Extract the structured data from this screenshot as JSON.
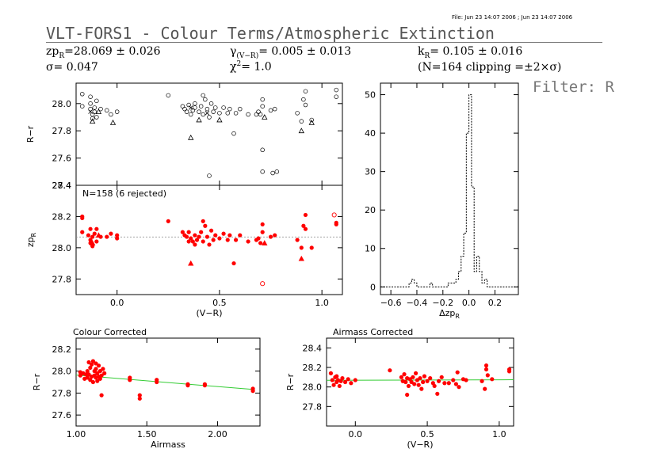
{
  "header": {
    "file_stamp": "File: Jun 23 14:07 2006 ; Jun 23 14:07 2006",
    "title": "VLT-FORS1 - Colour Terms/Atmospheric Extinction",
    "filter": "Filter: R"
  },
  "stats": {
    "zp": "zp",
    "zp_sub": "R",
    "zp_val": "=28.069 ± 0.026",
    "sigma": "σ= 0.047",
    "gamma": "γ",
    "gamma_sub": "(V−R)",
    "gamma_val": "= 0.005 ± 0.013",
    "chi": "χ",
    "chi_sup": "2",
    "chi_val": "= 1.0",
    "k": "k",
    "k_sub": "R",
    "k_val": "= 0.105 ± 0.016",
    "clip": "(N=164 clipping =±2×σ)"
  },
  "colors": {
    "accent": "#ff0000",
    "fit": "#33cc33",
    "grid": "#888888"
  },
  "chart_data": [
    {
      "id": "raw",
      "type": "scatter",
      "xlim": [
        -0.2,
        1.1
      ],
      "ylim": [
        27.4,
        28.15
      ],
      "yticks": [
        27.4,
        27.6,
        27.8,
        28.0
      ],
      "ytick_labels": [
        "27.4",
        "27.6",
        "27.8",
        "28.0"
      ],
      "ylabel": "R−r",
      "circles": [
        [
          -0.17,
          28.07
        ],
        [
          -0.17,
          27.98
        ],
        [
          -0.13,
          28.05
        ],
        [
          -0.13,
          28.0
        ],
        [
          -0.13,
          27.96
        ],
        [
          -0.12,
          27.92
        ],
        [
          -0.12,
          27.89
        ],
        [
          -0.11,
          27.94
        ],
        [
          -0.11,
          27.97
        ],
        [
          -0.1,
          27.9
        ],
        [
          -0.1,
          28.02
        ],
        [
          -0.08,
          27.96
        ],
        [
          -0.05,
          27.95
        ],
        [
          -0.03,
          27.92
        ],
        [
          0.0,
          27.94
        ],
        [
          0.25,
          28.06
        ],
        [
          0.32,
          27.98
        ],
        [
          0.33,
          27.96
        ],
        [
          0.34,
          27.94
        ],
        [
          0.35,
          27.99
        ],
        [
          0.36,
          27.92
        ],
        [
          0.37,
          27.95
        ],
        [
          0.38,
          27.97
        ],
        [
          0.38,
          28.0
        ],
        [
          0.4,
          27.94
        ],
        [
          0.41,
          27.98
        ],
        [
          0.42,
          27.92
        ],
        [
          0.42,
          28.06
        ],
        [
          0.43,
          28.03
        ],
        [
          0.44,
          27.96
        ],
        [
          0.45,
          27.9
        ],
        [
          0.46,
          28.0
        ],
        [
          0.47,
          27.94
        ],
        [
          0.48,
          27.97
        ],
        [
          0.5,
          27.93
        ],
        [
          0.52,
          27.97
        ],
        [
          0.54,
          27.93
        ],
        [
          0.55,
          27.96
        ],
        [
          0.57,
          27.78
        ],
        [
          0.58,
          27.93
        ],
        [
          0.6,
          27.96
        ],
        [
          0.64,
          27.92
        ],
        [
          0.68,
          27.92
        ],
        [
          0.69,
          27.94
        ],
        [
          0.7,
          27.92
        ],
        [
          0.71,
          28.03
        ],
        [
          0.71,
          27.98
        ],
        [
          0.71,
          27.66
        ],
        [
          0.71,
          27.5
        ],
        [
          0.75,
          27.95
        ],
        [
          0.76,
          27.49
        ],
        [
          0.77,
          27.96
        ],
        [
          0.78,
          27.5
        ],
        [
          0.88,
          27.93
        ],
        [
          0.9,
          27.87
        ],
        [
          0.91,
          28.03
        ],
        [
          0.92,
          28.09
        ],
        [
          0.92,
          27.99
        ],
        [
          0.95,
          27.88
        ],
        [
          1.07,
          28.1
        ],
        [
          1.07,
          28.05
        ],
        [
          0.45,
          27.47
        ]
      ],
      "triangles": [
        [
          -0.12,
          27.87
        ],
        [
          -0.09,
          27.94
        ],
        [
          -0.02,
          27.86
        ],
        [
          0.36,
          27.75
        ],
        [
          0.4,
          27.88
        ],
        [
          0.5,
          27.88
        ],
        [
          0.72,
          27.9
        ],
        [
          0.9,
          27.8
        ],
        [
          0.95,
          27.86
        ]
      ],
      "crosses": [
        [
          -0.13,
          27.94
        ],
        [
          0.36,
          27.97
        ],
        [
          0.44,
          27.93
        ]
      ]
    },
    {
      "id": "zp",
      "type": "scatter",
      "annotation": "N=158 (6 rejected)",
      "xlim": [
        -0.2,
        1.1
      ],
      "ylim": [
        27.7,
        28.4
      ],
      "xticks": [
        0.0,
        0.5,
        1.0
      ],
      "xtick_labels": [
        "0.0",
        "0.5",
        "1.0"
      ],
      "yticks": [
        27.8,
        28.0,
        28.2,
        28.4
      ],
      "ytick_labels": [
        "27.8",
        "28.0",
        "28.2",
        "28.4"
      ],
      "xlabel": "(V−R)",
      "ylabel": "zp",
      "ylabel_sub": "R",
      "fit_y": 28.069,
      "points": [
        [
          -0.17,
          28.2
        ],
        [
          -0.17,
          28.19
        ],
        [
          -0.17,
          28.1
        ],
        [
          -0.14,
          28.08
        ],
        [
          -0.13,
          28.12
        ],
        [
          -0.13,
          28.05
        ],
        [
          -0.13,
          28.03
        ],
        [
          -0.12,
          28.01
        ],
        [
          -0.12,
          28.07
        ],
        [
          -0.11,
          28.09
        ],
        [
          -0.1,
          28.04
        ],
        [
          -0.1,
          28.12
        ],
        [
          -0.08,
          28.07
        ],
        [
          -0.05,
          28.07
        ],
        [
          -0.03,
          28.09
        ],
        [
          0.0,
          28.08
        ],
        [
          0.0,
          28.06
        ],
        [
          0.25,
          28.17
        ],
        [
          0.32,
          28.1
        ],
        [
          0.33,
          28.08
        ],
        [
          0.34,
          28.07
        ],
        [
          0.35,
          28.1
        ],
        [
          0.35,
          28.04
        ],
        [
          0.36,
          28.06
        ],
        [
          0.37,
          28.04
        ],
        [
          0.38,
          28.08
        ],
        [
          0.38,
          28.02
        ],
        [
          0.39,
          28.05
        ],
        [
          0.4,
          28.07
        ],
        [
          0.41,
          28.1
        ],
        [
          0.42,
          28.04
        ],
        [
          0.42,
          28.17
        ],
        [
          0.43,
          28.14
        ],
        [
          0.44,
          28.07
        ],
        [
          0.45,
          28.02
        ],
        [
          0.46,
          28.11
        ],
        [
          0.47,
          28.05
        ],
        [
          0.48,
          28.08
        ],
        [
          0.5,
          28.06
        ],
        [
          0.52,
          28.09
        ],
        [
          0.54,
          28.05
        ],
        [
          0.55,
          28.08
        ],
        [
          0.57,
          27.9
        ],
        [
          0.58,
          28.05
        ],
        [
          0.6,
          28.08
        ],
        [
          0.64,
          28.04
        ],
        [
          0.68,
          28.05
        ],
        [
          0.69,
          28.06
        ],
        [
          0.7,
          28.03
        ],
        [
          0.71,
          28.15
        ],
        [
          0.71,
          28.1
        ],
        [
          0.75,
          28.07
        ],
        [
          0.77,
          28.08
        ],
        [
          0.88,
          28.05
        ],
        [
          0.9,
          28.0
        ],
        [
          0.91,
          28.14
        ],
        [
          0.92,
          28.21
        ],
        [
          0.92,
          28.12
        ],
        [
          0.95,
          28.0
        ],
        [
          1.07,
          28.16
        ],
        [
          1.07,
          28.15
        ]
      ],
      "triangles": [
        [
          -0.12,
          28.03
        ],
        [
          -0.09,
          28.08
        ],
        [
          0.36,
          27.9
        ],
        [
          0.72,
          28.03
        ],
        [
          0.9,
          27.93
        ]
      ],
      "rejected": [
        [
          1.06,
          28.21
        ],
        [
          0.71,
          27.77
        ]
      ]
    },
    {
      "id": "hist",
      "type": "bar",
      "step": true,
      "xlim": [
        -0.68,
        0.38
      ],
      "ylim": [
        -2,
        53
      ],
      "xticks": [
        -0.6,
        -0.4,
        -0.2,
        0.0,
        0.2
      ],
      "xtick_labels": [
        "−0.6",
        "−0.4",
        "−0.2",
        "0.0",
        "0.2"
      ],
      "yticks": [
        0,
        10,
        20,
        30,
        40,
        50
      ],
      "ytick_labels": [
        "0",
        "10",
        "20",
        "30",
        "40",
        "50"
      ],
      "xlabel": "Δzp",
      "xlabel_sub": "R",
      "bins": [
        [
          -0.68,
          0
        ],
        [
          -0.6,
          0
        ],
        [
          -0.46,
          1
        ],
        [
          -0.44,
          2
        ],
        [
          -0.42,
          1
        ],
        [
          -0.4,
          0
        ],
        [
          -0.3,
          1
        ],
        [
          -0.28,
          0
        ],
        [
          -0.16,
          1
        ],
        [
          -0.1,
          2
        ],
        [
          -0.08,
          4
        ],
        [
          -0.06,
          8
        ],
        [
          -0.04,
          14
        ],
        [
          -0.02,
          40
        ],
        [
          0.0,
          50
        ],
        [
          0.02,
          26
        ],
        [
          0.04,
          4
        ],
        [
          0.06,
          8
        ],
        [
          0.08,
          4
        ],
        [
          0.1,
          1
        ],
        [
          0.12,
          2
        ],
        [
          0.14,
          0
        ],
        [
          0.38,
          0
        ]
      ]
    },
    {
      "id": "colour",
      "type": "scatter",
      "title": "Colour Corrected",
      "xlim": [
        1.0,
        2.3
      ],
      "ylim": [
        27.5,
        28.3
      ],
      "xticks": [
        1.0,
        1.5,
        2.0
      ],
      "xtick_labels": [
        "1.00",
        "1.50",
        "2.00"
      ],
      "yticks": [
        27.6,
        27.8,
        28.0,
        28.2
      ],
      "ytick_labels": [
        "27.6",
        "27.8",
        "28.0",
        "28.2"
      ],
      "xlabel": "Airmass",
      "ylabel": "R−r",
      "fit": [
        [
          1.0,
          27.964
        ],
        [
          2.25,
          27.833
        ]
      ],
      "points": [
        [
          1.03,
          27.99
        ],
        [
          1.03,
          27.96
        ],
        [
          1.05,
          27.98
        ],
        [
          1.06,
          27.93
        ],
        [
          1.07,
          27.97
        ],
        [
          1.08,
          28.0
        ],
        [
          1.08,
          27.94
        ],
        [
          1.09,
          27.97
        ],
        [
          1.09,
          28.08
        ],
        [
          1.1,
          27.92
        ],
        [
          1.1,
          28.03
        ],
        [
          1.11,
          27.95
        ],
        [
          1.11,
          28.06
        ],
        [
          1.12,
          27.9
        ],
        [
          1.12,
          28.09
        ],
        [
          1.13,
          28.0
        ],
        [
          1.13,
          27.96
        ],
        [
          1.14,
          28.02
        ],
        [
          1.14,
          27.94
        ],
        [
          1.14,
          28.07
        ],
        [
          1.15,
          27.98
        ],
        [
          1.15,
          27.91
        ],
        [
          1.16,
          28.05
        ],
        [
          1.16,
          27.95
        ],
        [
          1.17,
          28.0
        ],
        [
          1.17,
          27.93
        ],
        [
          1.18,
          27.96
        ],
        [
          1.18,
          27.78
        ],
        [
          1.2,
          27.98
        ],
        [
          1.19,
          28.02
        ],
        [
          1.38,
          27.92
        ],
        [
          1.38,
          27.94
        ],
        [
          1.45,
          27.75
        ],
        [
          1.45,
          27.78
        ],
        [
          1.57,
          27.9
        ],
        [
          1.57,
          27.92
        ],
        [
          1.79,
          27.87
        ],
        [
          1.79,
          27.88
        ],
        [
          1.91,
          27.87
        ],
        [
          1.91,
          27.88
        ],
        [
          2.25,
          27.84
        ],
        [
          2.25,
          27.82
        ]
      ]
    },
    {
      "id": "airmass",
      "type": "scatter",
      "title": "Airmass Corrected",
      "xlim": [
        -0.2,
        1.1
      ],
      "ylim": [
        27.6,
        28.5
      ],
      "xticks": [
        0.0,
        0.5,
        1.0
      ],
      "xtick_labels": [
        "0.0",
        "0.5",
        "1.0"
      ],
      "yticks": [
        27.8,
        28.0,
        28.2,
        28.4
      ],
      "ytick_labels": [
        "27.8",
        "28.0",
        "28.2",
        "28.4"
      ],
      "xlabel": "(V−R)",
      "ylabel": "R−r",
      "fit": [
        [
          -0.2,
          28.068
        ],
        [
          1.1,
          28.074
        ]
      ],
      "points": [
        [
          -0.17,
          28.14
        ],
        [
          -0.16,
          28.07
        ],
        [
          -0.15,
          28.02
        ],
        [
          -0.14,
          28.1
        ],
        [
          -0.13,
          28.05
        ],
        [
          -0.13,
          28.11
        ],
        [
          -0.12,
          28.07
        ],
        [
          -0.11,
          28.01
        ],
        [
          -0.1,
          28.06
        ],
        [
          -0.09,
          28.09
        ],
        [
          -0.07,
          28.05
        ],
        [
          -0.05,
          28.08
        ],
        [
          -0.03,
          28.04
        ],
        [
          0.0,
          28.07
        ],
        [
          0.24,
          28.17
        ],
        [
          0.32,
          28.1
        ],
        [
          0.33,
          28.06
        ],
        [
          0.34,
          28.13
        ],
        [
          0.35,
          28.05
        ],
        [
          0.36,
          28.09
        ],
        [
          0.36,
          27.92
        ],
        [
          0.37,
          28.01
        ],
        [
          0.38,
          28.08
        ],
        [
          0.39,
          28.05
        ],
        [
          0.4,
          28.1
        ],
        [
          0.41,
          28.03
        ],
        [
          0.42,
          28.14
        ],
        [
          0.43,
          28.07
        ],
        [
          0.44,
          28.02
        ],
        [
          0.45,
          28.09
        ],
        [
          0.46,
          27.98
        ],
        [
          0.47,
          28.05
        ],
        [
          0.48,
          28.11
        ],
        [
          0.5,
          28.06
        ],
        [
          0.52,
          28.09
        ],
        [
          0.54,
          28.04
        ],
        [
          0.55,
          28.01
        ],
        [
          0.57,
          27.93
        ],
        [
          0.58,
          28.06
        ],
        [
          0.6,
          28.1
        ],
        [
          0.62,
          28.04
        ],
        [
          0.65,
          28.04
        ],
        [
          0.68,
          28.07
        ],
        [
          0.7,
          28.03
        ],
        [
          0.71,
          28.15
        ],
        [
          0.72,
          28.0
        ],
        [
          0.75,
          28.08
        ],
        [
          0.77,
          28.07
        ],
        [
          0.88,
          28.06
        ],
        [
          0.9,
          27.98
        ],
        [
          0.91,
          28.18
        ],
        [
          0.91,
          28.22
        ],
        [
          0.92,
          28.12
        ],
        [
          0.95,
          28.08
        ],
        [
          1.07,
          28.16
        ],
        [
          1.07,
          28.18
        ]
      ]
    }
  ]
}
